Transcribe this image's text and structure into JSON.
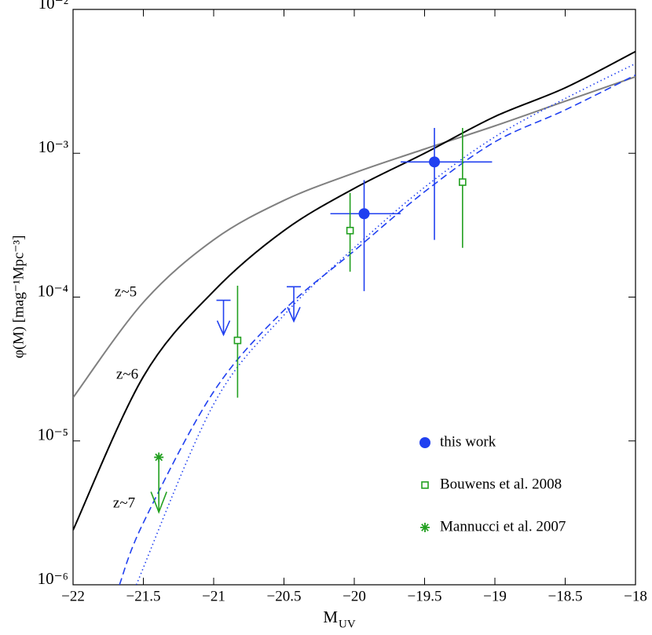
{
  "chart_data": {
    "type": "scatter",
    "ylog": true,
    "xlabel": "M",
    "xlabel_sub": "UV",
    "ylabel": "φ(M) [mag⁻¹Mpc⁻³]",
    "xlim": [
      -22,
      -18
    ],
    "ylim": [
      1e-06,
      0.01
    ],
    "xticks": [
      {
        "value": -22,
        "label": "−22"
      },
      {
        "value": -21.5,
        "label": "−21.5"
      },
      {
        "value": -21,
        "label": "−21"
      },
      {
        "value": -20.5,
        "label": "−20.5"
      },
      {
        "value": -20,
        "label": "−20"
      },
      {
        "value": -19.5,
        "label": "−19.5"
      },
      {
        "value": -19,
        "label": "−19"
      },
      {
        "value": -18.5,
        "label": "−18.5"
      },
      {
        "value": -18,
        "label": "−18"
      }
    ],
    "yticks": [
      {
        "value": 1e-06,
        "label": "10⁻⁶"
      },
      {
        "value": 1e-05,
        "label": "10⁻⁵"
      },
      {
        "value": 0.0001,
        "label": "10⁻⁴"
      },
      {
        "value": 0.001,
        "label": "10⁻³"
      },
      {
        "value": 0.01,
        "label": "10⁻²"
      }
    ],
    "legend": "lower right",
    "curves": [
      {
        "label": "z~5",
        "color": "#808080",
        "style": "solid",
        "x": [
          -22,
          -21.5,
          -21,
          -20.5,
          -20,
          -19.5,
          -19,
          -18.5,
          -18
        ],
        "values": [
          2e-05,
          9.2e-05,
          0.00025,
          0.00047,
          0.00073,
          0.00107,
          0.00155,
          0.0023,
          0.0034
        ]
      },
      {
        "label": "z~6",
        "color": "#000000",
        "style": "solid",
        "x": [
          -22,
          -21.5,
          -21,
          -20.5,
          -20,
          -19.5,
          -19,
          -18.5,
          -18
        ],
        "values": [
          2.4e-06,
          2.8e-05,
          0.00011,
          0.00029,
          0.00057,
          0.001,
          0.0018,
          0.00285,
          0.0051
        ]
      },
      {
        "label": "z~7",
        "color": "#2040f0",
        "style": "dashed",
        "x": [
          -21.67,
          -21.5,
          -21,
          -20.5,
          -20,
          -19.5,
          -19,
          -18.5,
          -18
        ],
        "values": [
          1e-06,
          2.7e-06,
          2.2e-05,
          8.1e-05,
          0.00021,
          0.00054,
          0.0012,
          0.002,
          0.0035
        ]
      },
      {
        "color": "#2040f0",
        "style": "dotted",
        "x": [
          -21.55,
          -21,
          -20.5,
          -20,
          -19.5,
          -19,
          -18.5,
          -18
        ],
        "values": [
          1e-06,
          1.8e-05,
          7.5e-05,
          0.00022,
          0.00058,
          0.0013,
          0.0024,
          0.0042
        ]
      }
    ],
    "series": [
      {
        "name": "this work",
        "color": "#2040f0",
        "marker": "circle",
        "x": [
          -19.93,
          -19.43
        ],
        "values": [
          0.00038,
          0.00087
        ],
        "x_low": [
          -20.17,
          -19.67
        ],
        "x_high": [
          -19.67,
          -19.02
        ],
        "y_low": [
          0.00011,
          0.00025
        ],
        "y_high": [
          0.00065,
          0.0015
        ],
        "upper_limits": {
          "x": [
            -20.93,
            -20.43
          ],
          "values": [
            9.5e-05,
            0.000118
          ]
        }
      },
      {
        "name": "Bouwens et al. 2008",
        "color": "#22a020",
        "marker": "square",
        "x": [
          -20.83,
          -20.03,
          -19.23
        ],
        "values": [
          5e-05,
          0.00029,
          0.00063
        ],
        "y_low": [
          2e-05,
          0.00015,
          0.00022
        ],
        "y_high": [
          0.00012,
          0.00053,
          0.0015
        ]
      },
      {
        "name": "Mannucci et al. 2007",
        "color": "#22a020",
        "marker": "star",
        "x": [
          -21.39
        ],
        "values": [
          7.7e-06
        ],
        "upper_limit": true
      }
    ]
  }
}
